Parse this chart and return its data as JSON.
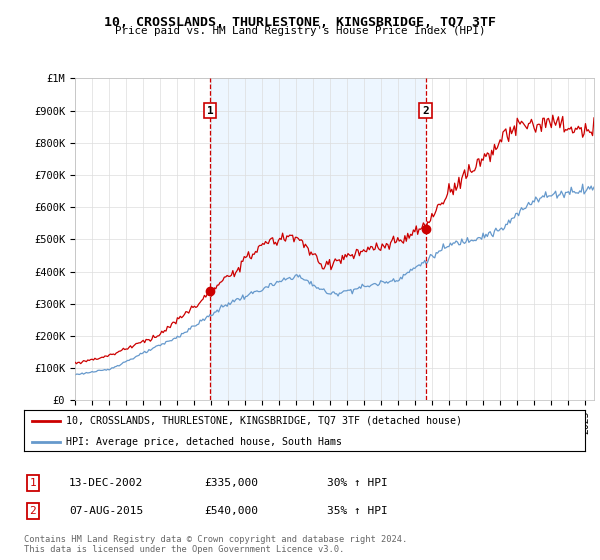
{
  "title": "10, CROSSLANDS, THURLESTONE, KINGSBRIDGE, TQ7 3TF",
  "subtitle": "Price paid vs. HM Land Registry's House Price Index (HPI)",
  "ylabel_vals": [
    "£0",
    "£100K",
    "£200K",
    "£300K",
    "£400K",
    "£500K",
    "£600K",
    "£700K",
    "£800K",
    "£900K",
    "£1M"
  ],
  "ylim": [
    0,
    1000000
  ],
  "xlim_start": 1995.0,
  "xlim_end": 2025.5,
  "x_ticks": [
    1995,
    1996,
    1997,
    1998,
    1999,
    2000,
    2001,
    2002,
    2003,
    2004,
    2005,
    2006,
    2007,
    2008,
    2009,
    2010,
    2011,
    2012,
    2013,
    2014,
    2015,
    2016,
    2017,
    2018,
    2019,
    2020,
    2021,
    2022,
    2023,
    2024,
    2025
  ],
  "vline1_x": 2002.95,
  "vline2_x": 2015.6,
  "sale1_label": "1",
  "sale1_date": "13-DEC-2002",
  "sale1_price": "£335,000",
  "sale1_hpi": "30% ↑ HPI",
  "sale1_price_val": 335000,
  "sale2_label": "2",
  "sale2_date": "07-AUG-2015",
  "sale2_price": "£540,000",
  "sale2_hpi": "35% ↑ HPI",
  "sale2_price_val": 540000,
  "legend_line1": "10, CROSSLANDS, THURLESTONE, KINGSBRIDGE, TQ7 3TF (detached house)",
  "legend_line2": "HPI: Average price, detached house, South Hams",
  "footer": "Contains HM Land Registry data © Crown copyright and database right 2024.\nThis data is licensed under the Open Government Licence v3.0.",
  "red_color": "#cc0000",
  "blue_color": "#6699cc",
  "blue_fill": "#ddeeff",
  "background_color": "#ffffff",
  "grid_color": "#dddddd"
}
